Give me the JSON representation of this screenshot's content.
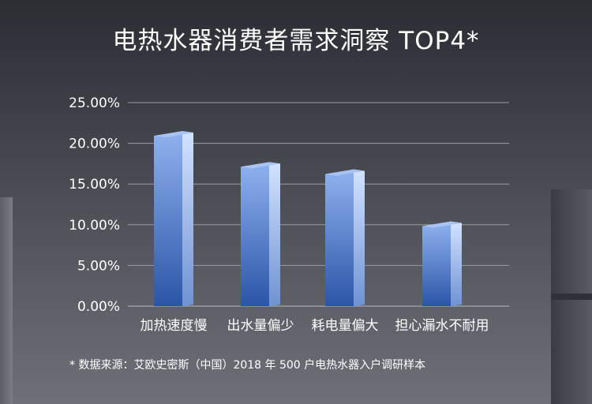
{
  "header": {
    "title": "电热水器消费者需求洞察 TOP4*"
  },
  "footnote": "* 数据来源：艾欧史密斯（中国）2018 年 500 户电热水器入户调研样本",
  "chart_data": {
    "type": "bar",
    "title": "电热水器消费者需求洞察 TOP4*",
    "categories": [
      "加热速度慢",
      "出水量偏少",
      "耗电量偏大",
      "担心漏水不耐用"
    ],
    "values": [
      21.5,
      17.7,
      16.8,
      10.4
    ],
    "ylim": [
      0,
      25
    ],
    "yticks": [
      "0.00%",
      "5.00%",
      "10.00%",
      "15.00%",
      "20.00%",
      "25.00%"
    ],
    "ytick_values": [
      0,
      5,
      10,
      15,
      20,
      25
    ],
    "xlabel": "",
    "ylabel": "",
    "grid": true,
    "legend": "none",
    "colors": {
      "bar_top": "#8fb3ee",
      "bar_bottom": "#2b55a8",
      "side_top": "#c7dbff",
      "side_bottom": "#6f92d3",
      "cap": "#a9c4f2",
      "grid": "#9a9ca3"
    }
  }
}
